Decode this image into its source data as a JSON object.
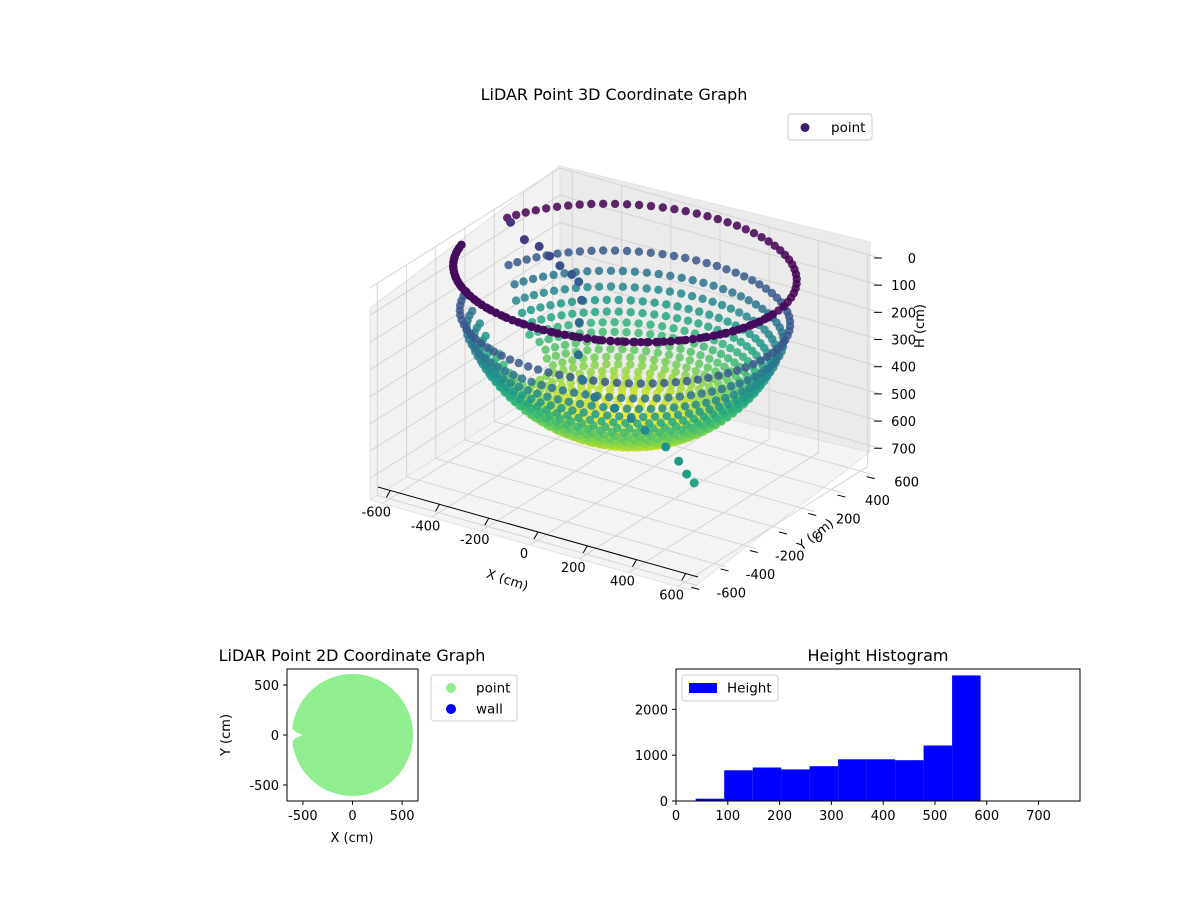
{
  "chart_data": [
    {
      "type": "scatter3d",
      "title": "LiDAR Point 3D Coordinate Graph",
      "xlabel": "X (cm)",
      "ylabel": "Y (cm)",
      "zlabel": "H (cm)",
      "xlim": [
        -650,
        650
      ],
      "ylim": [
        -650,
        650
      ],
      "zlim": [
        0,
        780
      ],
      "z_inverted": true,
      "x_ticks": [
        "-600",
        "-400",
        "-200",
        "0",
        "200",
        "400",
        "600"
      ],
      "y_ticks": [
        "-600",
        "-400",
        "-200",
        "0",
        "200",
        "400",
        "600"
      ],
      "z_ticks": [
        "0",
        "100",
        "200",
        "300",
        "400",
        "500",
        "600",
        "700"
      ],
      "colormap": "viridis",
      "legend": {
        "position": "top-right",
        "entries": [
          {
            "label": "point",
            "color": "#3b1f6e"
          }
        ]
      },
      "surface": {
        "shape": "bowl",
        "radius": 600,
        "max_depth": 590
      }
    },
    {
      "type": "scatter",
      "title": "LiDAR Point 2D Coordinate Graph",
      "xlabel": "X (cm)",
      "ylabel": "Y (cm)",
      "xlim": [
        -660,
        660
      ],
      "ylim": [
        -660,
        660
      ],
      "x_ticks": [
        "-500",
        "0",
        "500"
      ],
      "y_ticks": [
        "-500",
        "0",
        "500"
      ],
      "legend": {
        "position": "outside-right",
        "entries": [
          {
            "label": "point",
            "color": "#90ee90"
          },
          {
            "label": "wall",
            "color": "#0000ff"
          }
        ]
      },
      "disk": {
        "radius": 610,
        "color": "#90ee90"
      }
    },
    {
      "type": "bar",
      "title": "Height Histogram",
      "xlabel": "",
      "ylabel": "",
      "xlim": [
        0,
        780
      ],
      "ylim": [
        0,
        2880
      ],
      "x_ticks": [
        "0",
        "100",
        "200",
        "300",
        "400",
        "500",
        "600",
        "700"
      ],
      "y_ticks": [
        "0",
        "1000",
        "2000"
      ],
      "color": "#0000ff",
      "legend": {
        "position": "top-left",
        "entries": [
          {
            "label": "Height",
            "color": "#0000ff"
          }
        ]
      },
      "bins": [
        {
          "from": 38,
          "to": 93,
          "count": 50
        },
        {
          "from": 93,
          "to": 148,
          "count": 670
        },
        {
          "from": 148,
          "to": 203,
          "count": 730
        },
        {
          "from": 203,
          "to": 258,
          "count": 690
        },
        {
          "from": 258,
          "to": 313,
          "count": 760
        },
        {
          "from": 313,
          "to": 368,
          "count": 910
        },
        {
          "from": 368,
          "to": 423,
          "count": 910
        },
        {
          "from": 423,
          "to": 478,
          "count": 890
        },
        {
          "from": 478,
          "to": 533,
          "count": 1210
        },
        {
          "from": 533,
          "to": 588,
          "count": 2740
        }
      ]
    }
  ]
}
